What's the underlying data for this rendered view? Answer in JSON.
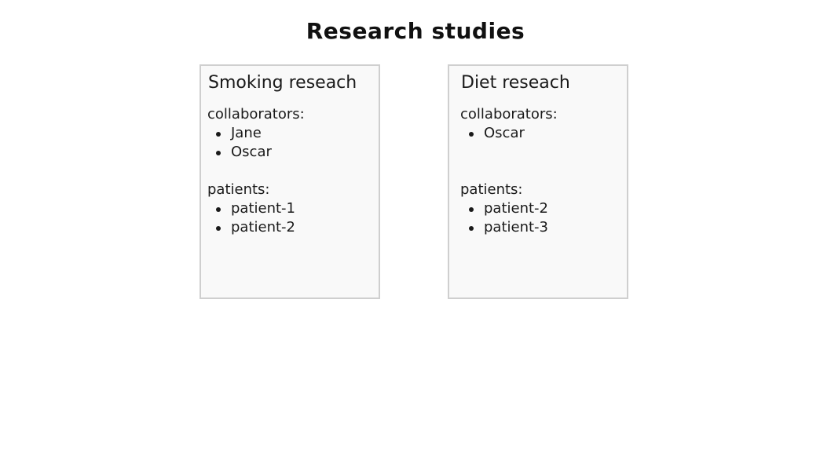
{
  "page": {
    "title": "Research studies"
  },
  "studies": [
    {
      "title": "Smoking reseach",
      "collaborators_label": "collaborators:",
      "collaborators": [
        "Jane",
        "Oscar"
      ],
      "patients_label": "patients:",
      "patients": [
        "patient-1",
        "patient-2"
      ]
    },
    {
      "title": "Diet reseach",
      "collaborators_label": "collaborators:",
      "collaborators": [
        "Oscar"
      ],
      "patients_label": "patients:",
      "patients": [
        "patient-2",
        "patient-3"
      ]
    }
  ]
}
